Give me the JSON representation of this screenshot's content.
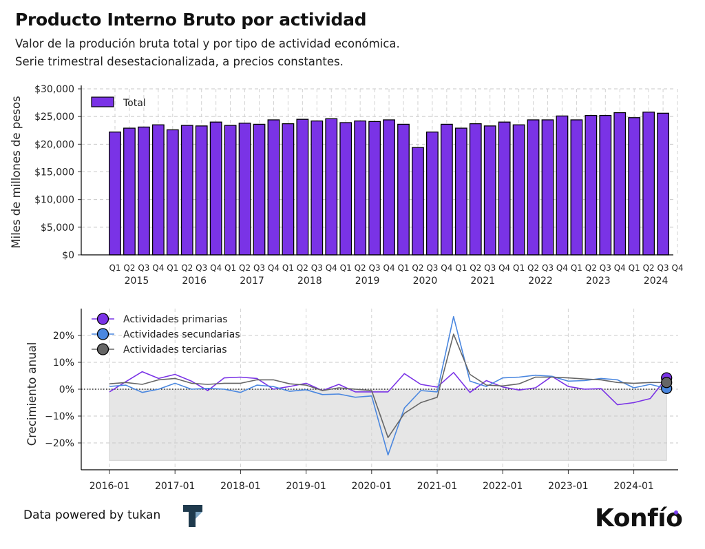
{
  "header": {
    "title": "Producto Interno Bruto por actividad",
    "subtitle_line1": "Valor de la produción bruta total y por tipo de actividad económica.",
    "subtitle_line2": "Serie trimestral desestacionalizada, a precios constantes."
  },
  "footer": {
    "powered_by": "Data powered by tukan",
    "brand": "Konfío"
  },
  "colors": {
    "bar": "#7a33e6",
    "primarias": "#7a33e6",
    "secundarias": "#4a87e0",
    "terciarias": "#666666",
    "negative_fill": "#e6e6e6"
  },
  "chart_data": [
    {
      "type": "bar",
      "ylabel": "Miles de millones de pesos",
      "ylim": [
        0,
        30000
      ],
      "yticks": [
        "$0",
        "$5,000",
        "$10,000",
        "$15,000",
        "$20,000",
        "$25,000",
        "$30,000"
      ],
      "legend": "top-left",
      "grid": true,
      "quarter_labels": [
        "Q1",
        "Q2",
        "Q3",
        "Q4",
        "Q1",
        "Q2",
        "Q3",
        "Q4",
        "Q1",
        "Q2",
        "Q3",
        "Q4",
        "Q1",
        "Q2",
        "Q3",
        "Q4",
        "Q1",
        "Q2",
        "Q3",
        "Q4",
        "Q1",
        "Q2",
        "Q3",
        "Q4",
        "Q1",
        "Q2",
        "Q3",
        "Q4",
        "Q1",
        "Q2",
        "Q3",
        "Q4",
        "Q1",
        "Q2",
        "Q3",
        "Q4",
        "Q1",
        "Q2",
        "Q3",
        "Q4"
      ],
      "years": [
        "2015",
        "2016",
        "2017",
        "2018",
        "2019",
        "2020",
        "2021",
        "2022",
        "2023",
        "2024"
      ],
      "series": [
        {
          "name": "Total",
          "values": [
            22200,
            22900,
            23100,
            23500,
            22600,
            23400,
            23300,
            24000,
            23400,
            23800,
            23600,
            24400,
            23700,
            24500,
            24200,
            24600,
            23900,
            24200,
            24100,
            24400,
            23600,
            19400,
            22200,
            23600,
            22900,
            23700,
            23300,
            24000,
            23500,
            24400,
            24400,
            25100,
            24400,
            25200,
            25200,
            25700,
            24800,
            25800,
            25600
          ]
        }
      ]
    },
    {
      "type": "line",
      "ylabel": "Crecimiento anual",
      "ylim": [
        -30,
        30
      ],
      "yticks": [
        "−20%",
        "−10%",
        "0%",
        "10%",
        "20%"
      ],
      "x_start": "2016-01",
      "xticks": [
        "2016-01",
        "2017-01",
        "2018-01",
        "2019-01",
        "2020-01",
        "2021-01",
        "2022-01",
        "2023-01",
        "2024-01"
      ],
      "legend": "top-left",
      "grid": true,
      "series": [
        {
          "name": "Actividades primarias",
          "values": [
            -1.0,
            2.8,
            6.5,
            4.0,
            5.5,
            3.0,
            -0.5,
            4.2,
            4.5,
            4.0,
            0.0,
            1.0,
            2.2,
            -0.5,
            1.8,
            -1.0,
            -1.0,
            -1.0,
            5.8,
            1.8,
            0.8,
            6.2,
            -1.2,
            3.2,
            0.8,
            -0.3,
            0.5,
            4.8,
            1.0,
            0.0,
            0.2,
            -5.8,
            -5.0,
            -3.5,
            4.2
          ]
        },
        {
          "name": "Actividades secundarias",
          "values": [
            1.0,
            1.5,
            -1.2,
            0.0,
            2.2,
            0.0,
            0.3,
            0.0,
            -1.2,
            1.5,
            1.0,
            -0.8,
            -0.2,
            -2.0,
            -1.8,
            -3.0,
            -2.5,
            -24.5,
            -7.0,
            -0.5,
            -1.0,
            27.0,
            3.0,
            1.0,
            4.2,
            4.5,
            5.2,
            4.8,
            3.0,
            3.2,
            4.0,
            3.5,
            0.5,
            1.8,
            0.3
          ]
        },
        {
          "name": "Actividades terciarias",
          "values": [
            2.0,
            2.5,
            1.8,
            3.5,
            4.0,
            2.2,
            1.8,
            2.2,
            2.2,
            3.5,
            3.5,
            2.0,
            1.5,
            -0.5,
            0.5,
            0.0,
            -0.5,
            -18.0,
            -9.0,
            -5.0,
            -3.0,
            20.5,
            5.5,
            1.5,
            1.2,
            2.0,
            4.5,
            4.5,
            4.2,
            3.8,
            3.5,
            2.5,
            2.2,
            2.5,
            2.5
          ]
        }
      ]
    }
  ]
}
